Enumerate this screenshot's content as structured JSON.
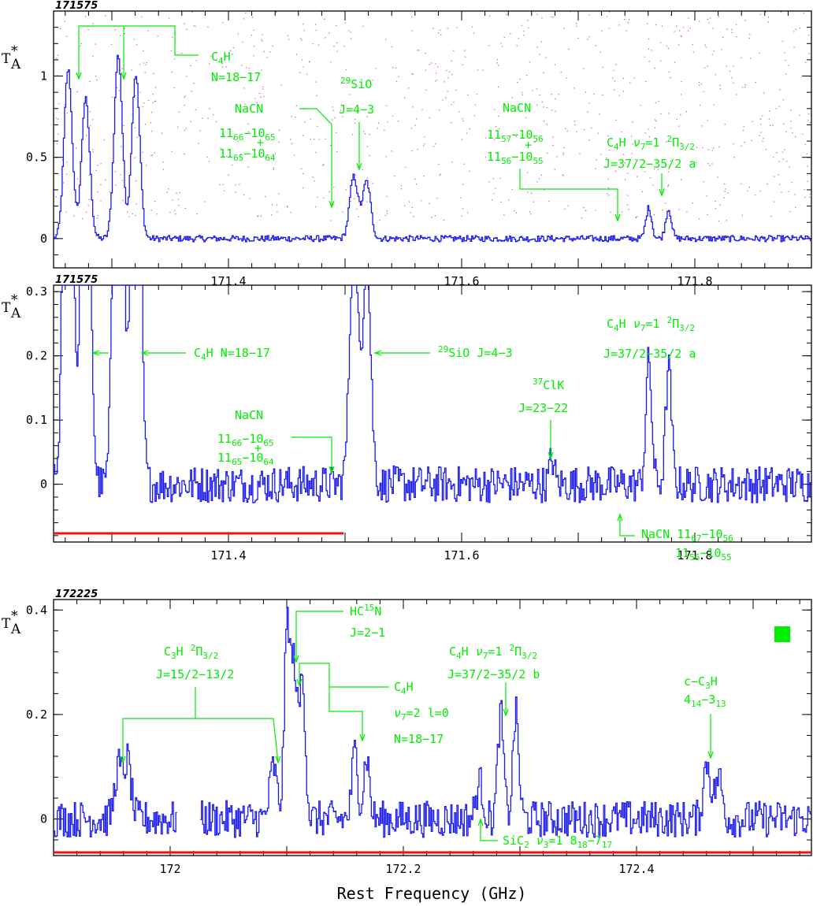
{
  "xlabel": "Rest Frequency (GHz)",
  "colors": {
    "spectrum": "#1a1aee",
    "annotation": "#00ee00",
    "coverage": "#ee1111",
    "frame": "#000000"
  },
  "chart_data": [
    {
      "type": "line",
      "label": "171575",
      "ylabel": "T*A",
      "xlim": [
        171.25,
        171.9
      ],
      "ylim": [
        -0.18,
        1.4
      ],
      "xticks": [
        "171.4",
        "171.6",
        "171.8"
      ],
      "yticks": [
        "0",
        "0.5",
        "1"
      ],
      "peaks": [
        {
          "x": 171.262,
          "y": 1.04,
          "w": 0.0035
        },
        {
          "x": 171.277,
          "y": 0.86,
          "w": 0.0035
        },
        {
          "x": 171.305,
          "y": 1.13,
          "w": 0.0035
        },
        {
          "x": 171.32,
          "y": 1.01,
          "w": 0.0035
        },
        {
          "x": 171.507,
          "y": 0.38,
          "w": 0.0035
        },
        {
          "x": 171.518,
          "y": 0.35,
          "w": 0.0035
        },
        {
          "x": 171.76,
          "y": 0.19,
          "w": 0.0025
        },
        {
          "x": 171.777,
          "y": 0.18,
          "w": 0.0025
        }
      ],
      "noise": 0.012
    },
    {
      "type": "line",
      "label": "171575",
      "ylabel": "T*A",
      "xlim": [
        171.25,
        171.9
      ],
      "ylim": [
        -0.09,
        0.31
      ],
      "xticks": [
        "171.4",
        "171.6",
        "171.8"
      ],
      "yticks": [
        "0",
        "0.1",
        "0.2",
        "0.3"
      ],
      "peaks": [
        {
          "x": 171.262,
          "y": 1.04,
          "w": 0.0035
        },
        {
          "x": 171.277,
          "y": 0.86,
          "w": 0.0035
        },
        {
          "x": 171.305,
          "y": 1.13,
          "w": 0.0035
        },
        {
          "x": 171.32,
          "y": 1.01,
          "w": 0.0035
        },
        {
          "x": 171.507,
          "y": 0.38,
          "w": 0.0035
        },
        {
          "x": 171.518,
          "y": 0.35,
          "w": 0.0035
        },
        {
          "x": 171.677,
          "y": 0.04,
          "w": 0.002
        },
        {
          "x": 171.76,
          "y": 0.19,
          "w": 0.0025
        },
        {
          "x": 171.777,
          "y": 0.18,
          "w": 0.0025
        }
      ],
      "noise": 0.018,
      "coverage": [
        171.25,
        171.5
      ]
    },
    {
      "type": "line",
      "label": "172225",
      "ylabel": "T*A",
      "xlim": [
        171.9,
        172.55
      ],
      "ylim": [
        -0.07,
        0.42
      ],
      "xticks": [
        "172",
        "172.2",
        "172.4"
      ],
      "yticks": [
        "0",
        "0.2",
        "0.4"
      ],
      "gap": [
        172.005,
        172.025
      ],
      "peaks": [
        {
          "x": 171.955,
          "y": 0.1,
          "w": 0.003
        },
        {
          "x": 171.963,
          "y": 0.11,
          "w": 0.003
        },
        {
          "x": 172.088,
          "y": 0.1,
          "w": 0.003
        },
        {
          "x": 172.1,
          "y": 0.37,
          "w": 0.0025
        },
        {
          "x": 172.106,
          "y": 0.28,
          "w": 0.0025
        },
        {
          "x": 172.113,
          "y": 0.27,
          "w": 0.0025
        },
        {
          "x": 172.158,
          "y": 0.13,
          "w": 0.0025
        },
        {
          "x": 172.168,
          "y": 0.12,
          "w": 0.0025
        },
        {
          "x": 172.265,
          "y": 0.07,
          "w": 0.003
        },
        {
          "x": 172.283,
          "y": 0.2,
          "w": 0.0025
        },
        {
          "x": 172.296,
          "y": 0.2,
          "w": 0.0025
        },
        {
          "x": 172.46,
          "y": 0.11,
          "w": 0.003
        },
        {
          "x": 172.47,
          "y": 0.08,
          "w": 0.003
        }
      ],
      "noise": 0.022,
      "coverage": [
        171.9,
        172.55
      ]
    }
  ]
}
